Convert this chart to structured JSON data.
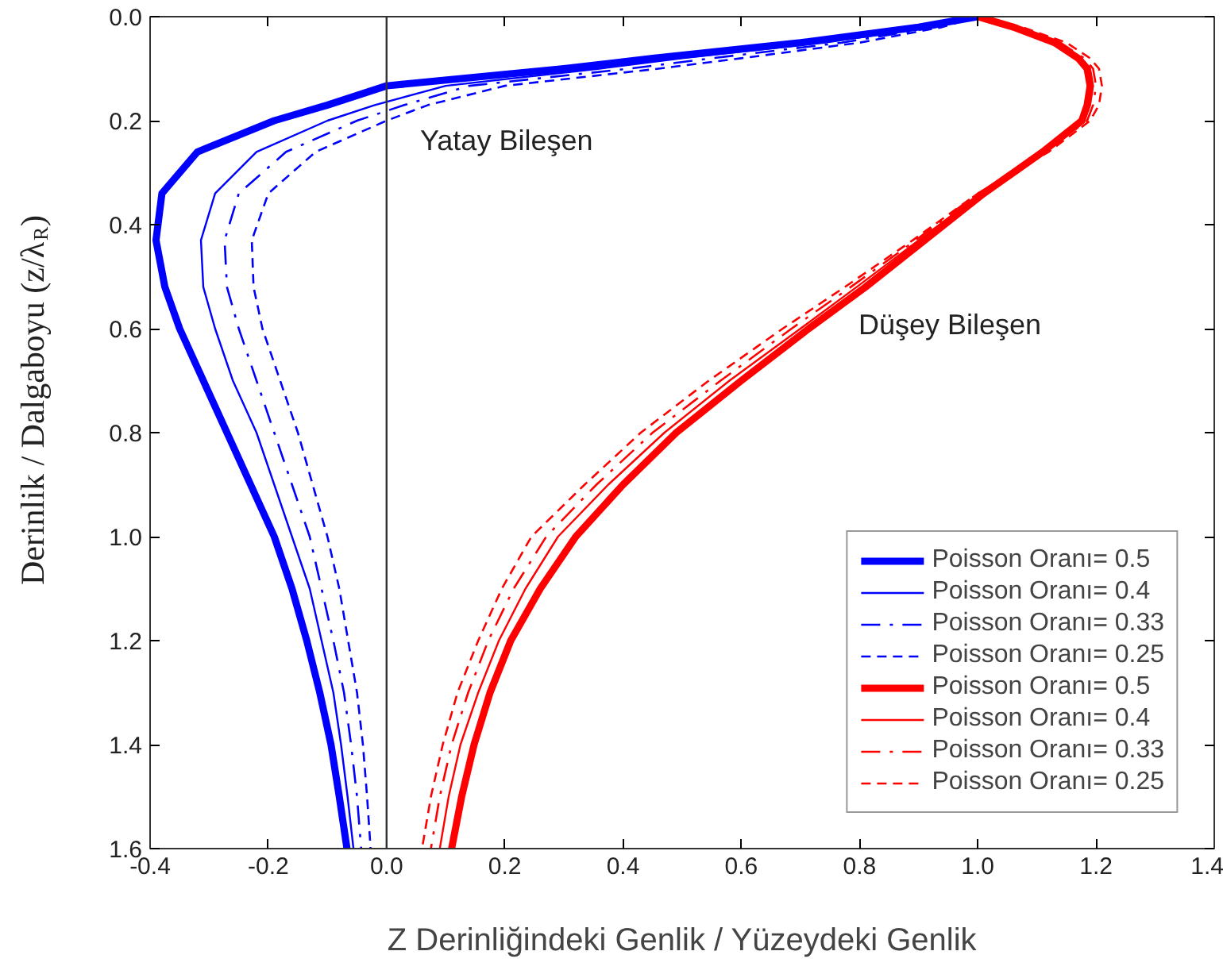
{
  "chart_data": {
    "type": "line",
    "xlabel": "Z Derinliğindeki Genlik / Yüzeydeki Genlik",
    "ylabel": "Derinlik / Dalgaboyu (z/λ$_{R}$)",
    "xlim": [
      -0.4,
      1.4
    ],
    "ylim": [
      1.6,
      0.0
    ],
    "xticks": [
      {
        "value": -0.4,
        "label": "-0.4"
      },
      {
        "value": -0.2,
        "label": "-0.2"
      },
      {
        "value": 0.0,
        "label": "0.0"
      },
      {
        "value": 0.2,
        "label": "0.2"
      },
      {
        "value": 0.4,
        "label": "0.4"
      },
      {
        "value": 0.6,
        "label": "0.6"
      },
      {
        "value": 0.8,
        "label": "0.8"
      },
      {
        "value": 1.0,
        "label": "1.0"
      },
      {
        "value": 1.2,
        "label": "1.2"
      },
      {
        "value": 1.4,
        "label": "1.4"
      }
    ],
    "yticks": [
      {
        "value": 0.0,
        "label": "0.0"
      },
      {
        "value": 0.2,
        "label": "0.2"
      },
      {
        "value": 0.4,
        "label": "0.4"
      },
      {
        "value": 0.6,
        "label": "0.6"
      },
      {
        "value": 0.8,
        "label": "0.8"
      },
      {
        "value": 1.0,
        "label": "1.0"
      },
      {
        "value": 1.2,
        "label": "1.2"
      },
      {
        "value": 1.4,
        "label": "1.4"
      },
      {
        "value": 1.6,
        "label": "1.6"
      }
    ],
    "grid": false,
    "legend": "bottom right",
    "ref_lines": [
      {
        "axis": "x",
        "value": 0.0,
        "color": "#333333"
      }
    ],
    "annotations": [
      "Yatay Bileşen",
      "Düşey Bileşen"
    ],
    "series": [
      {
        "name": "Poisson Oranı= 0.5",
        "color": "#0000ff",
        "line_style": "solid",
        "x": [
          1.0,
          0.9,
          0.7,
          0.45,
          0.3,
          0.0,
          -0.1,
          -0.19,
          -0.32,
          -0.38,
          -0.39,
          -0.375,
          -0.35,
          -0.31,
          -0.27,
          -0.23,
          -0.19,
          -0.16,
          -0.135,
          -0.113,
          -0.094,
          -0.08,
          -0.067
        ],
        "values": [
          0,
          0.02,
          0.05,
          0.08,
          0.1,
          0.133,
          0.17,
          0.2,
          0.26,
          0.34,
          0.43,
          0.52,
          0.6,
          0.7,
          0.8,
          0.9,
          1.0,
          1.1,
          1.2,
          1.3,
          1.4,
          1.5,
          1.6
        ]
      },
      {
        "name": "Poisson Oranı= 0.4",
        "color": "#0000ff",
        "line_style": "solid",
        "x": [
          1.0,
          0.92,
          0.74,
          0.5,
          0.36,
          0.1,
          -0.02,
          -0.1,
          -0.22,
          -0.29,
          -0.314,
          -0.31,
          -0.29,
          -0.26,
          -0.22,
          -0.19,
          -0.16,
          -0.13,
          -0.11,
          -0.09,
          -0.077,
          -0.066,
          -0.056
        ],
        "values": [
          0,
          0.02,
          0.05,
          0.08,
          0.1,
          0.133,
          0.17,
          0.2,
          0.26,
          0.34,
          0.43,
          0.52,
          0.6,
          0.7,
          0.8,
          0.9,
          1.0,
          1.1,
          1.2,
          1.3,
          1.4,
          1.5,
          1.6
        ]
      },
      {
        "name": "Poisson Oranı= 0.33",
        "color": "#0000ff",
        "line_style": "dashdot",
        "x": [
          1.0,
          0.93,
          0.77,
          0.55,
          0.41,
          0.14,
          0.03,
          -0.05,
          -0.17,
          -0.25,
          -0.274,
          -0.27,
          -0.25,
          -0.22,
          -0.19,
          -0.16,
          -0.13,
          -0.11,
          -0.09,
          -0.072,
          -0.06,
          -0.05,
          -0.043
        ],
        "values": [
          0,
          0.02,
          0.05,
          0.08,
          0.1,
          0.133,
          0.17,
          0.2,
          0.26,
          0.34,
          0.43,
          0.52,
          0.6,
          0.7,
          0.8,
          0.9,
          1.0,
          1.1,
          1.2,
          1.3,
          1.4,
          1.5,
          1.6
        ]
      },
      {
        "name": "Poisson Oranı= 0.25",
        "color": "#0000ff",
        "line_style": "dashed",
        "x": [
          1.0,
          0.94,
          0.8,
          0.6,
          0.46,
          0.2,
          0.07,
          0.0,
          -0.12,
          -0.2,
          -0.228,
          -0.225,
          -0.21,
          -0.18,
          -0.15,
          -0.125,
          -0.1,
          -0.08,
          -0.065,
          -0.05,
          -0.04,
          -0.033,
          -0.027
        ],
        "values": [
          0,
          0.02,
          0.05,
          0.08,
          0.1,
          0.133,
          0.17,
          0.2,
          0.26,
          0.34,
          0.43,
          0.52,
          0.6,
          0.7,
          0.8,
          0.9,
          1.0,
          1.1,
          1.2,
          1.3,
          1.4,
          1.5,
          1.6
        ]
      },
      {
        "name": "Poisson Oranı= 0.5",
        "color": "#ff0000",
        "line_style": "solid",
        "x": [
          1.0,
          1.06,
          1.13,
          1.17,
          1.185,
          1.19,
          1.185,
          1.176,
          1.11,
          1.01,
          0.91,
          0.81,
          0.714,
          0.6,
          0.49,
          0.4,
          0.32,
          0.26,
          0.21,
          0.175,
          0.148,
          0.127,
          0.11
        ],
        "values": [
          0,
          0.02,
          0.05,
          0.08,
          0.1,
          0.133,
          0.17,
          0.2,
          0.26,
          0.34,
          0.43,
          0.52,
          0.6,
          0.7,
          0.8,
          0.9,
          1.0,
          1.1,
          1.2,
          1.3,
          1.4,
          1.5,
          1.6
        ]
      },
      {
        "name": "Poisson Oranı= 0.4",
        "color": "#ff0000",
        "line_style": "solid",
        "x": [
          1.0,
          1.065,
          1.135,
          1.175,
          1.19,
          1.195,
          1.19,
          1.18,
          1.11,
          1.005,
          0.9,
          0.795,
          0.7,
          0.58,
          0.47,
          0.375,
          0.29,
          0.235,
          0.19,
          0.155,
          0.125,
          0.105,
          0.09
        ],
        "values": [
          0,
          0.02,
          0.05,
          0.08,
          0.1,
          0.133,
          0.17,
          0.2,
          0.26,
          0.34,
          0.43,
          0.52,
          0.6,
          0.7,
          0.8,
          0.9,
          1.0,
          1.1,
          1.2,
          1.3,
          1.4,
          1.5,
          1.6
        ]
      },
      {
        "name": "Poisson Oranı= 0.33",
        "color": "#ff0000",
        "line_style": "dashdot",
        "x": [
          1.0,
          1.07,
          1.14,
          1.18,
          1.195,
          1.2,
          1.195,
          1.185,
          1.115,
          1.0,
          0.895,
          0.785,
          0.685,
          0.565,
          0.45,
          0.355,
          0.27,
          0.215,
          0.172,
          0.138,
          0.11,
          0.09,
          0.075
        ],
        "values": [
          0,
          0.02,
          0.05,
          0.08,
          0.1,
          0.133,
          0.17,
          0.2,
          0.26,
          0.34,
          0.43,
          0.52,
          0.6,
          0.7,
          0.8,
          0.9,
          1.0,
          1.1,
          1.2,
          1.3,
          1.4,
          1.5,
          1.6
        ]
      },
      {
        "name": "Poisson Oranı= 0.25",
        "color": "#ff0000",
        "line_style": "dashed",
        "x": [
          1.0,
          1.075,
          1.15,
          1.19,
          1.205,
          1.21,
          1.205,
          1.19,
          1.12,
          1.0,
          0.89,
          0.775,
          0.67,
          0.545,
          0.43,
          0.335,
          0.245,
          0.195,
          0.155,
          0.12,
          0.095,
          0.075,
          0.06
        ],
        "values": [
          0,
          0.02,
          0.05,
          0.08,
          0.1,
          0.133,
          0.17,
          0.2,
          0.26,
          0.34,
          0.43,
          0.52,
          0.6,
          0.7,
          0.8,
          0.9,
          1.0,
          1.1,
          1.2,
          1.3,
          1.4,
          1.5,
          1.6
        ]
      }
    ]
  }
}
